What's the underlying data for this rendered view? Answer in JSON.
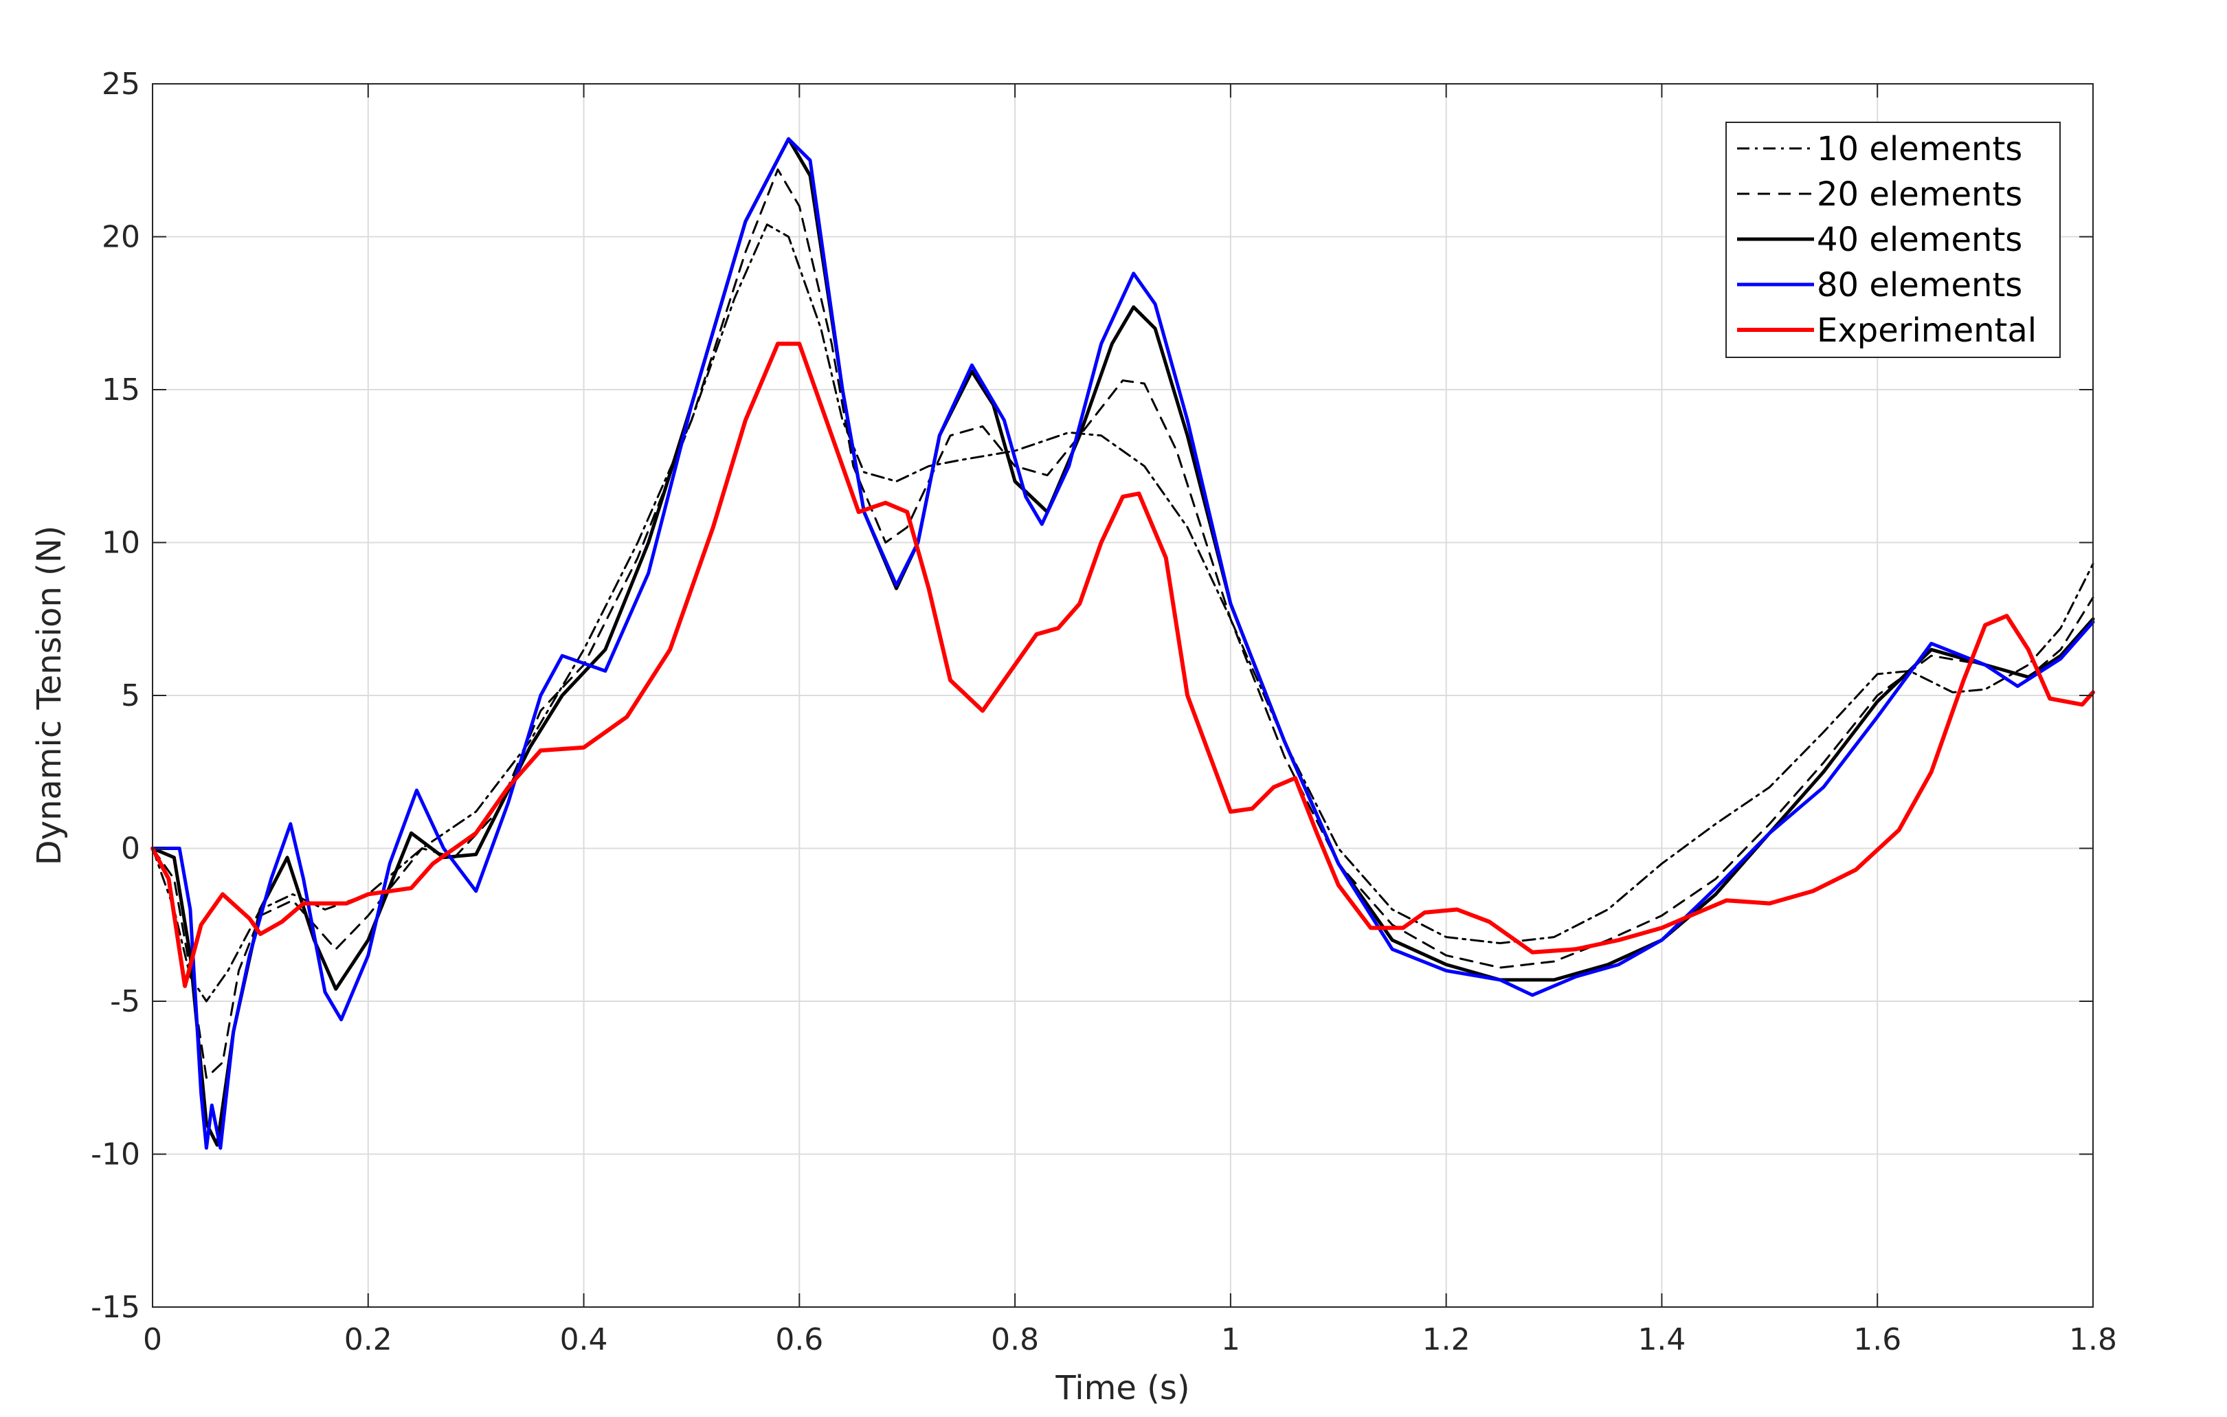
{
  "chart_data": {
    "type": "line",
    "xlabel": "Time (s)",
    "ylabel": "Dynamic Tension (N)",
    "xlim": [
      0,
      1.8
    ],
    "ylim": [
      -15,
      25
    ],
    "xticks": [
      0,
      0.2,
      0.4,
      0.6,
      0.8,
      1,
      1.2,
      1.4,
      1.6,
      1.8
    ],
    "xtick_labels": [
      "0",
      "0.2",
      "0.4",
      "0.6",
      "0.8",
      "1",
      "1.2",
      "1.4",
      "1.6",
      "1.8"
    ],
    "yticks": [
      -15,
      -10,
      -5,
      0,
      5,
      10,
      15,
      20,
      25
    ],
    "ytick_labels": [
      "-15",
      "-10",
      "-5",
      "0",
      "5",
      "10",
      "15",
      "20",
      "25"
    ],
    "grid": true,
    "legend_position": "top-right",
    "series": [
      {
        "name": "10 elements",
        "color": "#000000",
        "style": "dashdot",
        "points": [
          [
            0,
            0
          ],
          [
            0.02,
            -2
          ],
          [
            0.035,
            -4.2
          ],
          [
            0.05,
            -5
          ],
          [
            0.07,
            -4
          ],
          [
            0.1,
            -2
          ],
          [
            0.13,
            -1.5
          ],
          [
            0.16,
            -2
          ],
          [
            0.2,
            -1.5
          ],
          [
            0.25,
            0
          ],
          [
            0.3,
            1.2
          ],
          [
            0.35,
            3.5
          ],
          [
            0.4,
            6.5
          ],
          [
            0.45,
            10
          ],
          [
            0.5,
            14
          ],
          [
            0.54,
            18
          ],
          [
            0.57,
            20.4
          ],
          [
            0.59,
            20
          ],
          [
            0.62,
            17
          ],
          [
            0.64,
            14
          ],
          [
            0.66,
            12.3
          ],
          [
            0.69,
            12
          ],
          [
            0.72,
            12.5
          ],
          [
            0.75,
            12.7
          ],
          [
            0.8,
            13
          ],
          [
            0.85,
            13.6
          ],
          [
            0.88,
            13.5
          ],
          [
            0.92,
            12.5
          ],
          [
            0.96,
            10.5
          ],
          [
            1,
            7.5
          ],
          [
            1.05,
            3.5
          ],
          [
            1.1,
            0
          ],
          [
            1.15,
            -2
          ],
          [
            1.2,
            -2.9
          ],
          [
            1.25,
            -3.1
          ],
          [
            1.3,
            -2.9
          ],
          [
            1.35,
            -2
          ],
          [
            1.4,
            -0.5
          ],
          [
            1.45,
            0.8
          ],
          [
            1.5,
            2
          ],
          [
            1.55,
            3.8
          ],
          [
            1.6,
            5.7
          ],
          [
            1.63,
            5.8
          ],
          [
            1.67,
            5.1
          ],
          [
            1.7,
            5.2
          ],
          [
            1.74,
            6
          ],
          [
            1.77,
            7.2
          ],
          [
            1.8,
            9.3
          ]
        ]
      },
      {
        "name": "20 elements",
        "color": "#000000",
        "style": "dashed",
        "points": [
          [
            0,
            0
          ],
          [
            0.02,
            -1
          ],
          [
            0.035,
            -4
          ],
          [
            0.05,
            -7.5
          ],
          [
            0.065,
            -7
          ],
          [
            0.08,
            -4
          ],
          [
            0.1,
            -2.2
          ],
          [
            0.13,
            -1.7
          ],
          [
            0.17,
            -3.3
          ],
          [
            0.2,
            -2.2
          ],
          [
            0.25,
            0
          ],
          [
            0.28,
            -0.3
          ],
          [
            0.32,
            1.2
          ],
          [
            0.36,
            4.5
          ],
          [
            0.4,
            6
          ],
          [
            0.45,
            9.5
          ],
          [
            0.5,
            14
          ],
          [
            0.55,
            19.5
          ],
          [
            0.58,
            22.2
          ],
          [
            0.6,
            21
          ],
          [
            0.63,
            16.5
          ],
          [
            0.65,
            12.5
          ],
          [
            0.68,
            10
          ],
          [
            0.7,
            10.5
          ],
          [
            0.74,
            13.5
          ],
          [
            0.77,
            13.8
          ],
          [
            0.8,
            12.5
          ],
          [
            0.83,
            12.2
          ],
          [
            0.86,
            13.5
          ],
          [
            0.9,
            15.3
          ],
          [
            0.92,
            15.2
          ],
          [
            0.95,
            13
          ],
          [
            1,
            7.5
          ],
          [
            1.05,
            3
          ],
          [
            1.1,
            -0.5
          ],
          [
            1.15,
            -2.5
          ],
          [
            1.2,
            -3.5
          ],
          [
            1.25,
            -3.9
          ],
          [
            1.3,
            -3.7
          ],
          [
            1.35,
            -3
          ],
          [
            1.4,
            -2.2
          ],
          [
            1.45,
            -1
          ],
          [
            1.5,
            0.8
          ],
          [
            1.55,
            2.8
          ],
          [
            1.6,
            5
          ],
          [
            1.65,
            6.3
          ],
          [
            1.7,
            6
          ],
          [
            1.74,
            5.6
          ],
          [
            1.77,
            6.5
          ],
          [
            1.8,
            8.2
          ]
        ]
      },
      {
        "name": "40 elements",
        "color": "#000000",
        "style": "solid",
        "points": [
          [
            0,
            0
          ],
          [
            0.02,
            -0.3
          ],
          [
            0.035,
            -3.5
          ],
          [
            0.05,
            -9
          ],
          [
            0.06,
            -9.7
          ],
          [
            0.075,
            -6
          ],
          [
            0.1,
            -2
          ],
          [
            0.125,
            -0.3
          ],
          [
            0.15,
            -3
          ],
          [
            0.17,
            -4.6
          ],
          [
            0.2,
            -3
          ],
          [
            0.24,
            0.5
          ],
          [
            0.27,
            -0.3
          ],
          [
            0.3,
            -0.2
          ],
          [
            0.35,
            3.3
          ],
          [
            0.38,
            5
          ],
          [
            0.42,
            6.5
          ],
          [
            0.46,
            10
          ],
          [
            0.5,
            14.5
          ],
          [
            0.55,
            20.5
          ],
          [
            0.59,
            23.2
          ],
          [
            0.61,
            22
          ],
          [
            0.64,
            15
          ],
          [
            0.66,
            11
          ],
          [
            0.69,
            8.5
          ],
          [
            0.71,
            10
          ],
          [
            0.73,
            13.5
          ],
          [
            0.76,
            15.6
          ],
          [
            0.78,
            14.5
          ],
          [
            0.8,
            12
          ],
          [
            0.83,
            11
          ],
          [
            0.86,
            13.5
          ],
          [
            0.89,
            16.5
          ],
          [
            0.91,
            17.7
          ],
          [
            0.93,
            17
          ],
          [
            0.96,
            13.5
          ],
          [
            1,
            8
          ],
          [
            1.05,
            3.5
          ],
          [
            1.1,
            -0.5
          ],
          [
            1.15,
            -3
          ],
          [
            1.2,
            -3.8
          ],
          [
            1.25,
            -4.3
          ],
          [
            1.3,
            -4.3
          ],
          [
            1.35,
            -3.8
          ],
          [
            1.4,
            -3
          ],
          [
            1.45,
            -1.5
          ],
          [
            1.5,
            0.5
          ],
          [
            1.55,
            2.5
          ],
          [
            1.6,
            4.8
          ],
          [
            1.65,
            6.5
          ],
          [
            1.7,
            6
          ],
          [
            1.74,
            5.6
          ],
          [
            1.77,
            6.3
          ],
          [
            1.8,
            7.5
          ]
        ]
      },
      {
        "name": "80 elements",
        "color": "#0000ff",
        "style": "solid",
        "points": [
          [
            0,
            0
          ],
          [
            0.025,
            0
          ],
          [
            0.035,
            -2
          ],
          [
            0.045,
            -8
          ],
          [
            0.05,
            -9.8
          ],
          [
            0.055,
            -8.4
          ],
          [
            0.063,
            -9.8
          ],
          [
            0.075,
            -6
          ],
          [
            0.09,
            -3.5
          ],
          [
            0.11,
            -1
          ],
          [
            0.128,
            0.8
          ],
          [
            0.14,
            -1
          ],
          [
            0.16,
            -4.7
          ],
          [
            0.175,
            -5.6
          ],
          [
            0.2,
            -3.5
          ],
          [
            0.22,
            -0.5
          ],
          [
            0.245,
            1.9
          ],
          [
            0.27,
            0
          ],
          [
            0.3,
            -1.4
          ],
          [
            0.33,
            1.5
          ],
          [
            0.36,
            5
          ],
          [
            0.38,
            6.3
          ],
          [
            0.42,
            5.8
          ],
          [
            0.46,
            9
          ],
          [
            0.5,
            14.5
          ],
          [
            0.55,
            20.5
          ],
          [
            0.59,
            23.2
          ],
          [
            0.61,
            22.5
          ],
          [
            0.64,
            15
          ],
          [
            0.66,
            11
          ],
          [
            0.69,
            8.6
          ],
          [
            0.71,
            10
          ],
          [
            0.73,
            13.5
          ],
          [
            0.76,
            15.8
          ],
          [
            0.79,
            14
          ],
          [
            0.81,
            11.5
          ],
          [
            0.825,
            10.6
          ],
          [
            0.85,
            12.5
          ],
          [
            0.88,
            16.5
          ],
          [
            0.91,
            18.8
          ],
          [
            0.93,
            17.8
          ],
          [
            0.96,
            14
          ],
          [
            1,
            8
          ],
          [
            1.05,
            3.5
          ],
          [
            1.1,
            -0.5
          ],
          [
            1.15,
            -3.3
          ],
          [
            1.2,
            -4
          ],
          [
            1.25,
            -4.3
          ],
          [
            1.28,
            -4.8
          ],
          [
            1.32,
            -4.2
          ],
          [
            1.36,
            -3.8
          ],
          [
            1.4,
            -3
          ],
          [
            1.45,
            -1.3
          ],
          [
            1.5,
            0.5
          ],
          [
            1.55,
            2
          ],
          [
            1.6,
            4.3
          ],
          [
            1.65,
            6.7
          ],
          [
            1.7,
            6
          ],
          [
            1.73,
            5.3
          ],
          [
            1.77,
            6.2
          ],
          [
            1.8,
            7.4
          ]
        ]
      },
      {
        "name": "Experimental",
        "color": "#ff0000",
        "style": "solid",
        "points": [
          [
            0,
            0
          ],
          [
            0.015,
            -1
          ],
          [
            0.03,
            -4.5
          ],
          [
            0.045,
            -2.5
          ],
          [
            0.065,
            -1.5
          ],
          [
            0.09,
            -2.3
          ],
          [
            0.1,
            -2.8
          ],
          [
            0.12,
            -2.4
          ],
          [
            0.14,
            -1.8
          ],
          [
            0.18,
            -1.8
          ],
          [
            0.2,
            -1.5
          ],
          [
            0.24,
            -1.3
          ],
          [
            0.26,
            -0.5
          ],
          [
            0.3,
            0.5
          ],
          [
            0.33,
            2
          ],
          [
            0.36,
            3.2
          ],
          [
            0.4,
            3.3
          ],
          [
            0.44,
            4.3
          ],
          [
            0.48,
            6.5
          ],
          [
            0.52,
            10.5
          ],
          [
            0.55,
            14
          ],
          [
            0.58,
            16.5
          ],
          [
            0.6,
            16.5
          ],
          [
            0.63,
            13.5
          ],
          [
            0.655,
            11
          ],
          [
            0.68,
            11.3
          ],
          [
            0.7,
            11
          ],
          [
            0.72,
            8.5
          ],
          [
            0.74,
            5.5
          ],
          [
            0.77,
            4.5
          ],
          [
            0.8,
            6
          ],
          [
            0.82,
            7
          ],
          [
            0.84,
            7.2
          ],
          [
            0.86,
            8
          ],
          [
            0.88,
            10
          ],
          [
            0.9,
            11.5
          ],
          [
            0.915,
            11.6
          ],
          [
            0.94,
            9.5
          ],
          [
            0.96,
            5
          ],
          [
            1,
            1.2
          ],
          [
            1.02,
            1.3
          ],
          [
            1.04,
            2
          ],
          [
            1.06,
            2.3
          ],
          [
            1.08,
            0.5
          ],
          [
            1.1,
            -1.2
          ],
          [
            1.13,
            -2.6
          ],
          [
            1.16,
            -2.6
          ],
          [
            1.18,
            -2.1
          ],
          [
            1.21,
            -2
          ],
          [
            1.24,
            -2.4
          ],
          [
            1.28,
            -3.4
          ],
          [
            1.32,
            -3.3
          ],
          [
            1.36,
            -3
          ],
          [
            1.4,
            -2.6
          ],
          [
            1.44,
            -2
          ],
          [
            1.46,
            -1.7
          ],
          [
            1.5,
            -1.8
          ],
          [
            1.54,
            -1.4
          ],
          [
            1.58,
            -0.7
          ],
          [
            1.62,
            0.6
          ],
          [
            1.65,
            2.5
          ],
          [
            1.68,
            5.5
          ],
          [
            1.7,
            7.3
          ],
          [
            1.72,
            7.6
          ],
          [
            1.74,
            6.5
          ],
          [
            1.76,
            4.9
          ],
          [
            1.79,
            4.7
          ],
          [
            1.8,
            5.1
          ]
        ]
      }
    ]
  }
}
